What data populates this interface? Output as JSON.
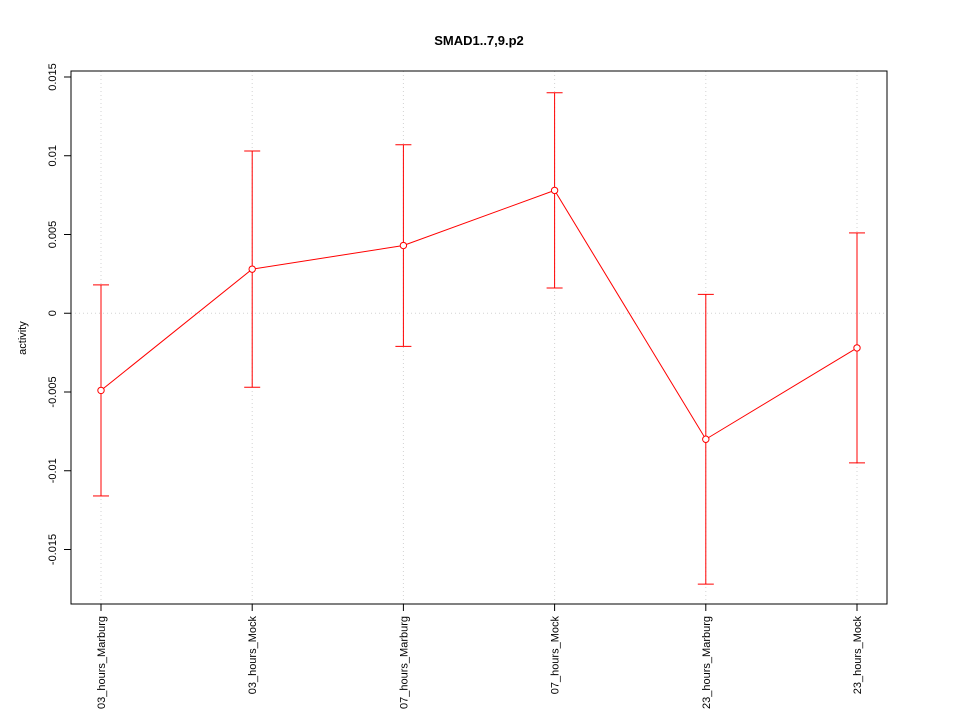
{
  "chart_data": {
    "type": "line",
    "title": "SMAD1..7,9.p2",
    "ylabel": "activity",
    "categories": [
      "03_hours_Marburg",
      "03_hours_Mock",
      "07_hours_Marburg",
      "07_hours_Mock",
      "23_hours_Marburg",
      "23_hours_Mock"
    ],
    "values": [
      -0.0049,
      0.0028,
      0.0043,
      0.0078,
      -0.008,
      -0.0022
    ],
    "errors": [
      0.0067,
      0.0075,
      0.0064,
      0.0062,
      0.0092,
      0.0073
    ],
    "color": "#ff0000",
    "ylim": [
      -0.01846,
      0.01538
    ],
    "yticks": [
      -0.015,
      -0.01,
      -0.005,
      0,
      0.005,
      0.01,
      0.015
    ],
    "hline": 0,
    "grid": true
  }
}
